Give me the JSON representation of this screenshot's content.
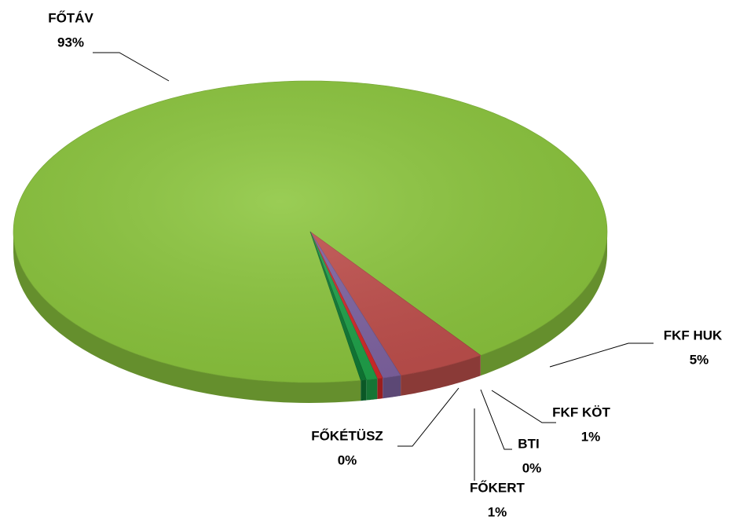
{
  "chart_data": {
    "type": "pie",
    "categories": [
      "FŐTÁV",
      "FKF HUK",
      "FKF KÖT",
      "BTI",
      "FŐKERT",
      "FŐKÉTÜSZ"
    ],
    "values": [
      93.0,
      4.8,
      1.0,
      0.3,
      0.6,
      0.3
    ],
    "value_labels": [
      "93%",
      "5%",
      "1%",
      "0%",
      "1%",
      "0%"
    ],
    "colors": [
      "#8cc63e",
      "#c0504d",
      "#8064a2",
      "#d42a2a",
      "#1fa24a",
      "#0f7a35"
    ]
  }
}
